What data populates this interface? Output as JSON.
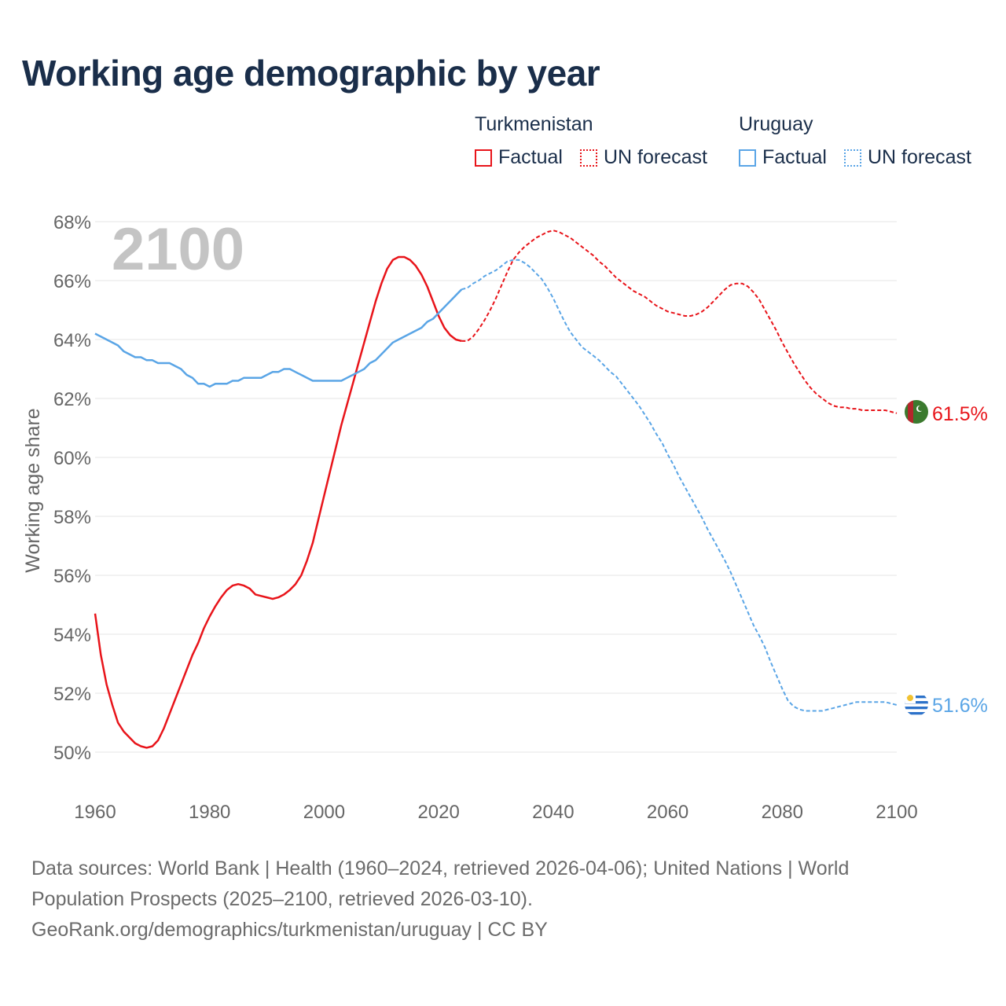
{
  "title": "Working age demographic by year",
  "legend": {
    "groups": [
      {
        "name": "Turkmenistan",
        "factual_label": "Factual",
        "forecast_label": "UN forecast",
        "color": "#e8141a"
      },
      {
        "name": "Uruguay",
        "factual_label": "Factual",
        "forecast_label": "UN forecast",
        "color": "#5aa5e6"
      }
    ]
  },
  "year_watermark": "2100",
  "footer": {
    "line1": "Data sources: World Bank | Health (1960–2024, retrieved 2026-04-06); United Nations | World",
    "line2": "Population Prospects (2025–2100, retrieved 2026-03-10).",
    "line3": "GeoRank.org/demographics/turkmenistan/uruguay | CC BY"
  },
  "chart_data": {
    "type": "line",
    "title": "Working age demographic by year",
    "xlabel": "",
    "ylabel": "Working age share",
    "xlim": [
      1960,
      2100
    ],
    "ylim": [
      49,
      68.5
    ],
    "x_ticks": [
      1960,
      1980,
      2000,
      2020,
      2040,
      2060,
      2080,
      2100
    ],
    "x_tick_labels": [
      "1960",
      "1980",
      "2000",
      "2020",
      "2040",
      "2060",
      "2080",
      "2100"
    ],
    "y_ticks": [
      50,
      52,
      54,
      56,
      58,
      60,
      62,
      64,
      66,
      68
    ],
    "y_tick_labels": [
      "50%",
      "52%",
      "54%",
      "56%",
      "58%",
      "60%",
      "62%",
      "64%",
      "66%",
      "68%"
    ],
    "grid": true,
    "forecast_start_year": 2024,
    "series": [
      {
        "name": "Turkmenistan",
        "color": "#e8141a",
        "end_label": "61.5%",
        "flag": "turkmenistan-flag",
        "points": [
          [
            1960,
            54.7
          ],
          [
            1961,
            53.3
          ],
          [
            1962,
            52.3
          ],
          [
            1963,
            51.6
          ],
          [
            1964,
            51.0
          ],
          [
            1965,
            50.7
          ],
          [
            1966,
            50.5
          ],
          [
            1967,
            50.3
          ],
          [
            1968,
            50.2
          ],
          [
            1969,
            50.15
          ],
          [
            1970,
            50.2
          ],
          [
            1971,
            50.4
          ],
          [
            1972,
            50.8
          ],
          [
            1973,
            51.3
          ],
          [
            1974,
            51.8
          ],
          [
            1975,
            52.3
          ],
          [
            1976,
            52.8
          ],
          [
            1977,
            53.3
          ],
          [
            1978,
            53.7
          ],
          [
            1979,
            54.2
          ],
          [
            1980,
            54.6
          ],
          [
            1981,
            54.95
          ],
          [
            1982,
            55.25
          ],
          [
            1983,
            55.5
          ],
          [
            1984,
            55.65
          ],
          [
            1985,
            55.7
          ],
          [
            1986,
            55.65
          ],
          [
            1987,
            55.55
          ],
          [
            1988,
            55.35
          ],
          [
            1989,
            55.3
          ],
          [
            1990,
            55.25
          ],
          [
            1991,
            55.2
          ],
          [
            1992,
            55.25
          ],
          [
            1993,
            55.35
          ],
          [
            1994,
            55.5
          ],
          [
            1995,
            55.7
          ],
          [
            1996,
            56.0
          ],
          [
            1997,
            56.5
          ],
          [
            1998,
            57.1
          ],
          [
            1999,
            57.9
          ],
          [
            2000,
            58.7
          ],
          [
            2001,
            59.5
          ],
          [
            2002,
            60.3
          ],
          [
            2003,
            61.1
          ],
          [
            2004,
            61.8
          ],
          [
            2005,
            62.5
          ],
          [
            2006,
            63.2
          ],
          [
            2007,
            63.9
          ],
          [
            2008,
            64.6
          ],
          [
            2009,
            65.3
          ],
          [
            2010,
            65.9
          ],
          [
            2011,
            66.4
          ],
          [
            2012,
            66.7
          ],
          [
            2013,
            66.8
          ],
          [
            2014,
            66.8
          ],
          [
            2015,
            66.7
          ],
          [
            2016,
            66.5
          ],
          [
            2017,
            66.2
          ],
          [
            2018,
            65.8
          ],
          [
            2019,
            65.3
          ],
          [
            2020,
            64.8
          ],
          [
            2021,
            64.4
          ],
          [
            2022,
            64.15
          ],
          [
            2023,
            64.0
          ],
          [
            2024,
            63.95
          ],
          [
            2025,
            63.95
          ],
          [
            2026,
            64.1
          ],
          [
            2027,
            64.35
          ],
          [
            2028,
            64.65
          ],
          [
            2029,
            65.0
          ],
          [
            2030,
            65.4
          ],
          [
            2031,
            65.85
          ],
          [
            2032,
            66.3
          ],
          [
            2033,
            66.7
          ],
          [
            2034,
            66.95
          ],
          [
            2035,
            67.15
          ],
          [
            2036,
            67.3
          ],
          [
            2037,
            67.45
          ],
          [
            2038,
            67.55
          ],
          [
            2039,
            67.65
          ],
          [
            2040,
            67.7
          ],
          [
            2041,
            67.65
          ],
          [
            2042,
            67.55
          ],
          [
            2043,
            67.45
          ],
          [
            2044,
            67.3
          ],
          [
            2045,
            67.15
          ],
          [
            2046,
            67.0
          ],
          [
            2047,
            66.85
          ],
          [
            2048,
            66.65
          ],
          [
            2049,
            66.5
          ],
          [
            2050,
            66.3
          ],
          [
            2051,
            66.1
          ],
          [
            2052,
            65.95
          ],
          [
            2053,
            65.8
          ],
          [
            2054,
            65.65
          ],
          [
            2055,
            65.55
          ],
          [
            2056,
            65.45
          ],
          [
            2057,
            65.3
          ],
          [
            2058,
            65.15
          ],
          [
            2059,
            65.05
          ],
          [
            2060,
            64.95
          ],
          [
            2061,
            64.9
          ],
          [
            2062,
            64.85
          ],
          [
            2063,
            64.8
          ],
          [
            2064,
            64.8
          ],
          [
            2065,
            64.85
          ],
          [
            2066,
            64.95
          ],
          [
            2067,
            65.1
          ],
          [
            2068,
            65.3
          ],
          [
            2069,
            65.5
          ],
          [
            2070,
            65.7
          ],
          [
            2071,
            65.85
          ],
          [
            2072,
            65.9
          ],
          [
            2073,
            65.9
          ],
          [
            2074,
            65.8
          ],
          [
            2075,
            65.6
          ],
          [
            2076,
            65.35
          ],
          [
            2077,
            65.0
          ],
          [
            2078,
            64.65
          ],
          [
            2079,
            64.3
          ],
          [
            2080,
            63.9
          ],
          [
            2081,
            63.55
          ],
          [
            2082,
            63.2
          ],
          [
            2083,
            62.9
          ],
          [
            2084,
            62.6
          ],
          [
            2085,
            62.35
          ],
          [
            2086,
            62.15
          ],
          [
            2087,
            62.0
          ],
          [
            2088,
            61.85
          ],
          [
            2089,
            61.75
          ],
          [
            2090,
            61.7
          ],
          [
            2091,
            61.7
          ],
          [
            2092,
            61.65
          ],
          [
            2093,
            61.65
          ],
          [
            2094,
            61.6
          ],
          [
            2095,
            61.6
          ],
          [
            2096,
            61.6
          ],
          [
            2097,
            61.6
          ],
          [
            2098,
            61.6
          ],
          [
            2099,
            61.55
          ],
          [
            2100,
            61.5
          ]
        ]
      },
      {
        "name": "Uruguay",
        "color": "#5aa5e6",
        "end_label": "51.6%",
        "flag": "uruguay-flag",
        "points": [
          [
            1960,
            64.2
          ],
          [
            1962,
            64.0
          ],
          [
            1964,
            63.8
          ],
          [
            1965,
            63.6
          ],
          [
            1967,
            63.4
          ],
          [
            1968,
            63.4
          ],
          [
            1969,
            63.3
          ],
          [
            1970,
            63.3
          ],
          [
            1971,
            63.2
          ],
          [
            1973,
            63.2
          ],
          [
            1974,
            63.1
          ],
          [
            1975,
            63.0
          ],
          [
            1976,
            62.8
          ],
          [
            1977,
            62.7
          ],
          [
            1978,
            62.5
          ],
          [
            1979,
            62.5
          ],
          [
            1980,
            62.4
          ],
          [
            1981,
            62.5
          ],
          [
            1983,
            62.5
          ],
          [
            1984,
            62.6
          ],
          [
            1985,
            62.6
          ],
          [
            1986,
            62.7
          ],
          [
            1989,
            62.7
          ],
          [
            1990,
            62.8
          ],
          [
            1991,
            62.9
          ],
          [
            1992,
            62.9
          ],
          [
            1993,
            63.0
          ],
          [
            1994,
            63.0
          ],
          [
            1995,
            62.9
          ],
          [
            1996,
            62.8
          ],
          [
            1997,
            62.7
          ],
          [
            1998,
            62.6
          ],
          [
            2003,
            62.6
          ],
          [
            2004,
            62.7
          ],
          [
            2005,
            62.8
          ],
          [
            2006,
            62.9
          ],
          [
            2007,
            63.0
          ],
          [
            2008,
            63.2
          ],
          [
            2009,
            63.3
          ],
          [
            2010,
            63.5
          ],
          [
            2011,
            63.7
          ],
          [
            2012,
            63.9
          ],
          [
            2013,
            64.0
          ],
          [
            2014,
            64.1
          ],
          [
            2015,
            64.2
          ],
          [
            2016,
            64.3
          ],
          [
            2017,
            64.4
          ],
          [
            2018,
            64.6
          ],
          [
            2019,
            64.7
          ],
          [
            2020,
            64.9
          ],
          [
            2021,
            65.1
          ],
          [
            2022,
            65.3
          ],
          [
            2023,
            65.5
          ],
          [
            2024,
            65.7
          ],
          [
            2025,
            65.75
          ],
          [
            2026,
            65.9
          ],
          [
            2027,
            66.0
          ],
          [
            2028,
            66.15
          ],
          [
            2029,
            66.25
          ],
          [
            2030,
            66.35
          ],
          [
            2031,
            66.5
          ],
          [
            2032,
            66.65
          ],
          [
            2033,
            66.7
          ],
          [
            2034,
            66.7
          ],
          [
            2035,
            66.6
          ],
          [
            2036,
            66.45
          ],
          [
            2037,
            66.25
          ],
          [
            2038,
            66.05
          ],
          [
            2039,
            65.75
          ],
          [
            2040,
            65.4
          ],
          [
            2041,
            65.0
          ],
          [
            2042,
            64.6
          ],
          [
            2043,
            64.25
          ],
          [
            2044,
            64.0
          ],
          [
            2045,
            63.75
          ],
          [
            2046,
            63.6
          ],
          [
            2047,
            63.45
          ],
          [
            2048,
            63.3
          ],
          [
            2049,
            63.1
          ],
          [
            2050,
            62.9
          ],
          [
            2051,
            62.75
          ],
          [
            2052,
            62.5
          ],
          [
            2053,
            62.25
          ],
          [
            2054,
            62.0
          ],
          [
            2055,
            61.75
          ],
          [
            2056,
            61.45
          ],
          [
            2057,
            61.15
          ],
          [
            2058,
            60.8
          ],
          [
            2059,
            60.5
          ],
          [
            2060,
            60.1
          ],
          [
            2061,
            59.75
          ],
          [
            2062,
            59.35
          ],
          [
            2063,
            59.0
          ],
          [
            2064,
            58.65
          ],
          [
            2065,
            58.3
          ],
          [
            2066,
            57.95
          ],
          [
            2067,
            57.55
          ],
          [
            2068,
            57.2
          ],
          [
            2069,
            56.85
          ],
          [
            2070,
            56.5
          ],
          [
            2071,
            56.1
          ],
          [
            2072,
            55.65
          ],
          [
            2073,
            55.2
          ],
          [
            2074,
            54.75
          ],
          [
            2075,
            54.3
          ],
          [
            2076,
            53.95
          ],
          [
            2077,
            53.55
          ],
          [
            2078,
            53.05
          ],
          [
            2079,
            52.6
          ],
          [
            2080,
            52.15
          ],
          [
            2081,
            51.75
          ],
          [
            2082,
            51.55
          ],
          [
            2083,
            51.45
          ],
          [
            2084,
            51.4
          ],
          [
            2085,
            51.4
          ],
          [
            2086,
            51.4
          ],
          [
            2087,
            51.4
          ],
          [
            2088,
            51.45
          ],
          [
            2089,
            51.5
          ],
          [
            2090,
            51.55
          ],
          [
            2091,
            51.6
          ],
          [
            2092,
            51.65
          ],
          [
            2093,
            51.7
          ],
          [
            2094,
            51.7
          ],
          [
            2095,
            51.7
          ],
          [
            2096,
            51.7
          ],
          [
            2097,
            51.7
          ],
          [
            2098,
            51.7
          ],
          [
            2099,
            51.65
          ],
          [
            2100,
            51.6
          ]
        ]
      }
    ]
  }
}
